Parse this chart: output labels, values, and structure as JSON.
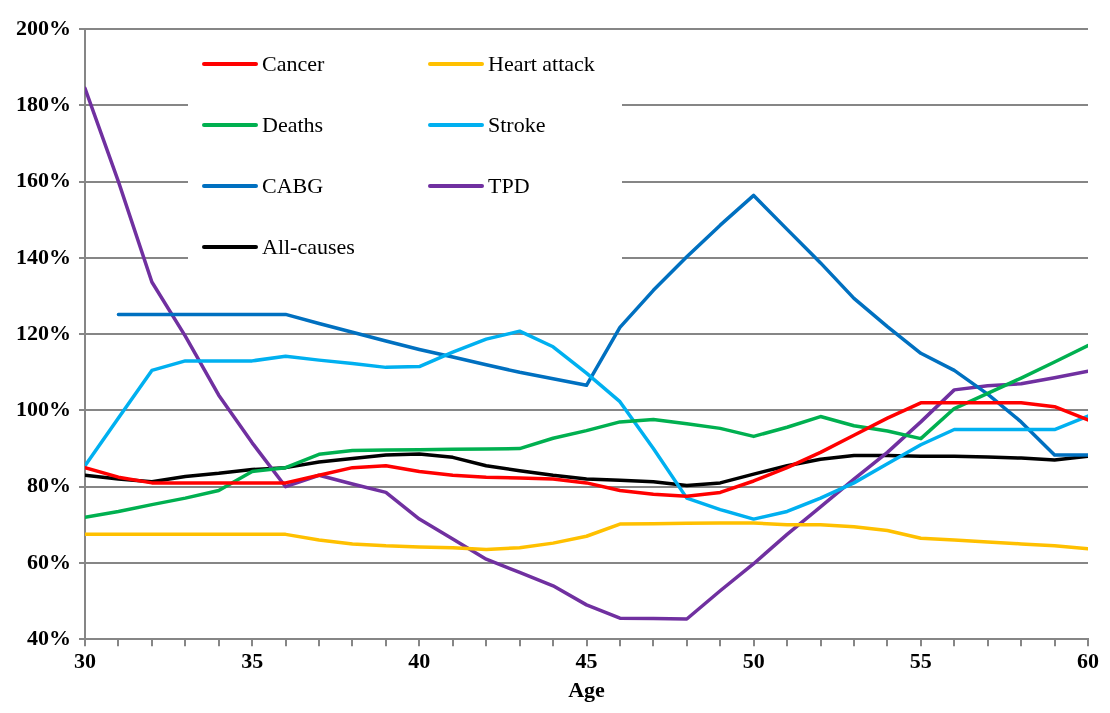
{
  "chart_data": {
    "type": "line",
    "xlabel": "Age",
    "x": [
      30,
      31,
      32,
      33,
      34,
      35,
      36,
      37,
      38,
      39,
      40,
      41,
      42,
      43,
      44,
      45,
      46,
      47,
      48,
      49,
      50,
      51,
      52,
      53,
      54,
      55,
      56,
      57,
      58,
      59,
      60
    ],
    "xlim": [
      30,
      60
    ],
    "xticks": [
      30,
      {
        "value": 31,
        "label": null
      },
      {
        "value": 32,
        "label": null
      },
      {
        "value": 33,
        "label": null
      },
      {
        "value": 34,
        "label": null
      },
      35,
      {
        "value": 36,
        "label": null
      },
      {
        "value": 37,
        "label": null
      },
      {
        "value": 38,
        "label": null
      },
      {
        "value": 39,
        "label": null
      },
      40,
      {
        "value": 41,
        "label": null
      },
      {
        "value": 42,
        "label": null
      },
      {
        "value": 43,
        "label": null
      },
      {
        "value": 44,
        "label": null
      },
      45,
      {
        "value": 46,
        "label": null
      },
      {
        "value": 47,
        "label": null
      },
      {
        "value": 48,
        "label": null
      },
      {
        "value": 49,
        "label": null
      },
      50,
      {
        "value": 51,
        "label": null
      },
      {
        "value": 52,
        "label": null
      },
      {
        "value": 53,
        "label": null
      },
      {
        "value": 54,
        "label": null
      },
      55,
      {
        "value": 56,
        "label": null
      },
      {
        "value": 57,
        "label": null
      },
      {
        "value": 58,
        "label": null
      },
      {
        "value": 59,
        "label": null
      },
      60
    ],
    "ylim": [
      40,
      200
    ],
    "yticks": [
      {
        "value": 40,
        "label": "40%"
      },
      {
        "value": 60,
        "label": "60%"
      },
      {
        "value": 80,
        "label": "80%"
      },
      {
        "value": 100,
        "label": "100%"
      },
      {
        "value": 120,
        "label": "120%"
      },
      {
        "value": 140,
        "label": "140%"
      },
      {
        "value": 160,
        "label": "160%"
      },
      {
        "value": 180,
        "label": "180%"
      },
      {
        "value": 200,
        "label": "200%"
      }
    ],
    "grid": "y",
    "legend": "top left",
    "marker": "none",
    "line_style": "solid",
    "series": [
      {
        "name": "Cancer",
        "color": "#ff0000",
        "values": [
          85,
          82.5,
          81,
          81,
          81,
          81,
          81,
          83,
          85,
          85.5,
          84,
          83,
          82.5,
          82.3,
          82,
          81,
          79,
          78,
          77.5,
          78.5,
          81.5,
          85,
          89,
          93.5,
          98,
          102,
          102,
          102,
          102,
          101,
          97.5
        ]
      },
      {
        "name": "Heart attack",
        "color": "#ffc000",
        "values": [
          67.5,
          67.5,
          67.5,
          67.5,
          67.5,
          67.5,
          67.5,
          66,
          65,
          64.5,
          64.2,
          64,
          63.5,
          64,
          65.2,
          67,
          70.2,
          70.3,
          70.4,
          70.5,
          70.5,
          70,
          70,
          69.5,
          68.5,
          66.5,
          66,
          65.5,
          65,
          64.5,
          63.7
        ]
      },
      {
        "name": "Deaths",
        "color": "#00b050",
        "values": [
          72,
          73.5,
          75.3,
          77,
          79,
          84,
          85,
          88.5,
          89.5,
          89.6,
          89.7,
          89.8,
          89.9,
          90,
          92.7,
          94.7,
          97,
          97.6,
          96.5,
          95.3,
          93.2,
          95.6,
          98.4,
          96,
          94.6,
          92.6,
          100.5,
          104.5,
          108.5,
          112.7,
          117
        ]
      },
      {
        "name": "Stroke",
        "color": "#00b0f0",
        "values": [
          85.5,
          98,
          110.5,
          113,
          113,
          113,
          114.2,
          113.2,
          112.3,
          111.3,
          111.5,
          115.3,
          118.7,
          120.8,
          116.7,
          109.8,
          102.3,
          90,
          77,
          74,
          71.5,
          73.5,
          77,
          81,
          86,
          91,
          95,
          95,
          95,
          95,
          98.5
        ]
      },
      {
        "name": "CABG",
        "color": "#0070c0",
        "values": [
          null,
          125.2,
          125.2,
          125.2,
          125.2,
          125.2,
          125.2,
          122.8,
          120.5,
          118.2,
          116,
          114,
          112,
          110,
          108.3,
          106.6,
          121.8,
          131.5,
          140.3,
          148.6,
          156.4,
          147.5,
          138.7,
          129.4,
          122,
          115,
          110.5,
          104.3,
          97,
          88.3,
          88.3
        ]
      },
      {
        "name": "TPD",
        "color": "#7030a0",
        "values": [
          184.5,
          160,
          133.7,
          119.5,
          104,
          91.5,
          80,
          83,
          80.7,
          78.5,
          71.5,
          66.3,
          61,
          57.5,
          54,
          49,
          45.5,
          45.4,
          45.3,
          52.7,
          59.8,
          67.5,
          74.7,
          82,
          89,
          97,
          105.4,
          106.5,
          107,
          108.6,
          110.3
        ]
      },
      {
        "name": "All-causes",
        "color": "#000000",
        "values": [
          83,
          82,
          81.3,
          82.7,
          83.5,
          84.5,
          85,
          86.5,
          87.4,
          88.3,
          88.6,
          87.7,
          85.5,
          84.2,
          83,
          82,
          81.7,
          81.3,
          80.3,
          81,
          83.3,
          85.5,
          87.2,
          88.2,
          88.2,
          88,
          88,
          87.8,
          87.5,
          87,
          88
        ]
      }
    ]
  }
}
